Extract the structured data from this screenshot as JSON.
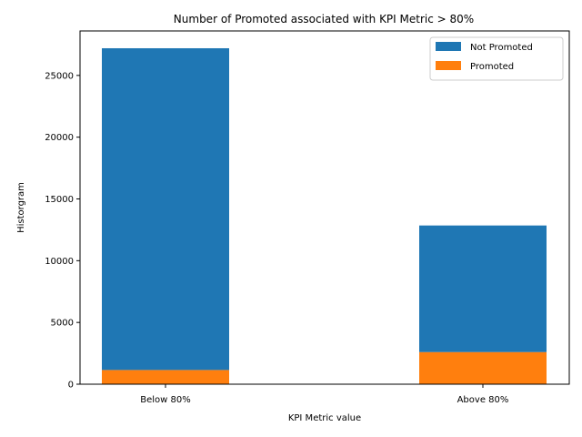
{
  "chart_data": {
    "type": "bar",
    "stacked": true,
    "title": "Number of Promoted associated with KPI Metric > 80%",
    "xlabel": "KPI Metric value",
    "ylabel": "Historgram",
    "categories": [
      "Below 80%",
      "Above 80%"
    ],
    "ylim": [
      0,
      28600
    ],
    "yticks": [
      0,
      5000,
      10000,
      15000,
      20000,
      25000
    ],
    "grid": false,
    "legend_position": "top-right",
    "series": [
      {
        "name": "Promoted",
        "values": [
          1150,
          2600
        ],
        "color": "#ff7f0e"
      },
      {
        "name": "Not Promoted",
        "values": [
          26050,
          10250
        ],
        "color": "#1f77b4"
      }
    ],
    "legend_order": [
      "Not Promoted",
      "Promoted"
    ]
  }
}
